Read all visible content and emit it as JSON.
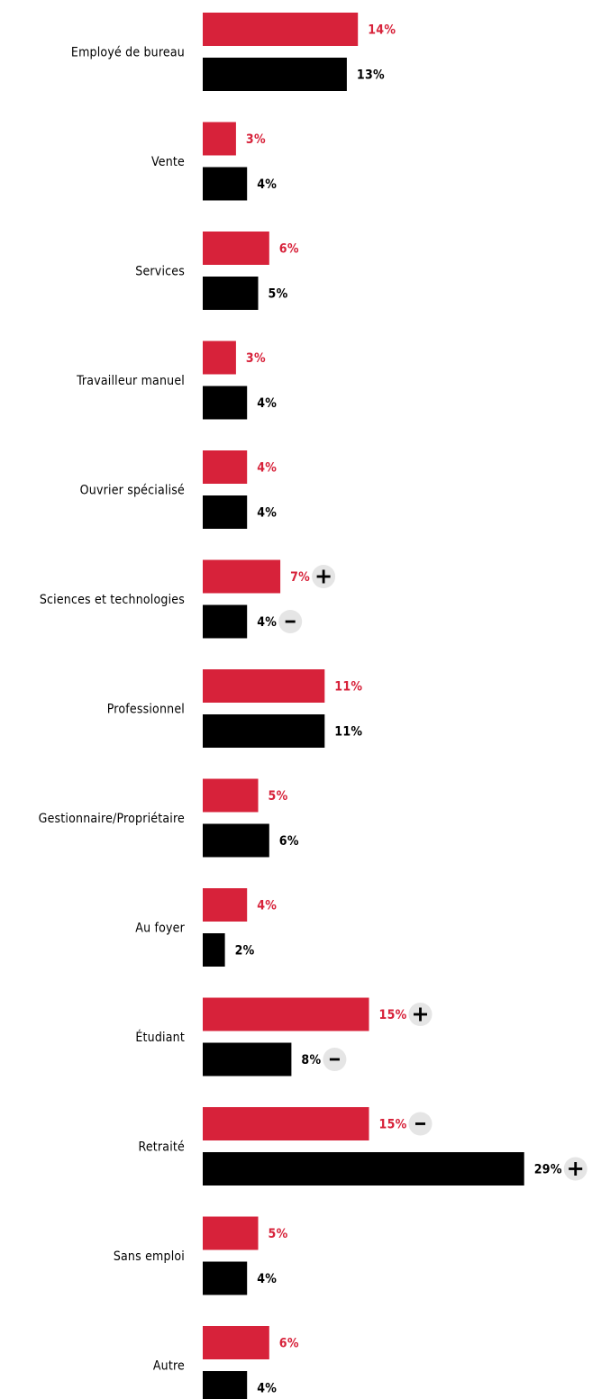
{
  "chart_data": {
    "type": "bar",
    "orientation": "horizontal",
    "categories": [
      "Employé de bureau",
      "Vente",
      "Services",
      "Travailleur manuel",
      "Ouvrier spécialisé",
      "Sciences et technologies",
      "Professionnel",
      "Gestionnaire/Propriétaire",
      "Au foyer",
      "Étudiant",
      "Retraité",
      "Sans emploi",
      "Autre"
    ],
    "series": [
      {
        "color": "#d7223a",
        "values": [
          14,
          3,
          6,
          3,
          4,
          7,
          11,
          5,
          4,
          15,
          15,
          5,
          6
        ],
        "labels": [
          "14%",
          "3%",
          "6%",
          "3%",
          "4%",
          "7%",
          "11%",
          "5%",
          "4%",
          "15%",
          "15%",
          "5%",
          "6%"
        ],
        "indicators": [
          "",
          "",
          "",
          "",
          "",
          "+",
          "",
          "",
          "",
          "+",
          "-",
          "",
          ""
        ]
      },
      {
        "color": "#000000",
        "values": [
          13,
          4,
          5,
          4,
          4,
          4,
          11,
          6,
          2,
          8,
          29,
          4,
          4
        ],
        "labels": [
          "13%",
          "4%",
          "5%",
          "4%",
          "4%",
          "4%",
          "11%",
          "6%",
          "2%",
          "8%",
          "29%",
          "4%",
          "4%"
        ],
        "indicators": [
          "",
          "",
          "",
          "",
          "",
          "-",
          "",
          "",
          "",
          "-",
          "+",
          "",
          ""
        ]
      }
    ],
    "value_unit": "%",
    "badge_color": "#e5e5e5"
  }
}
